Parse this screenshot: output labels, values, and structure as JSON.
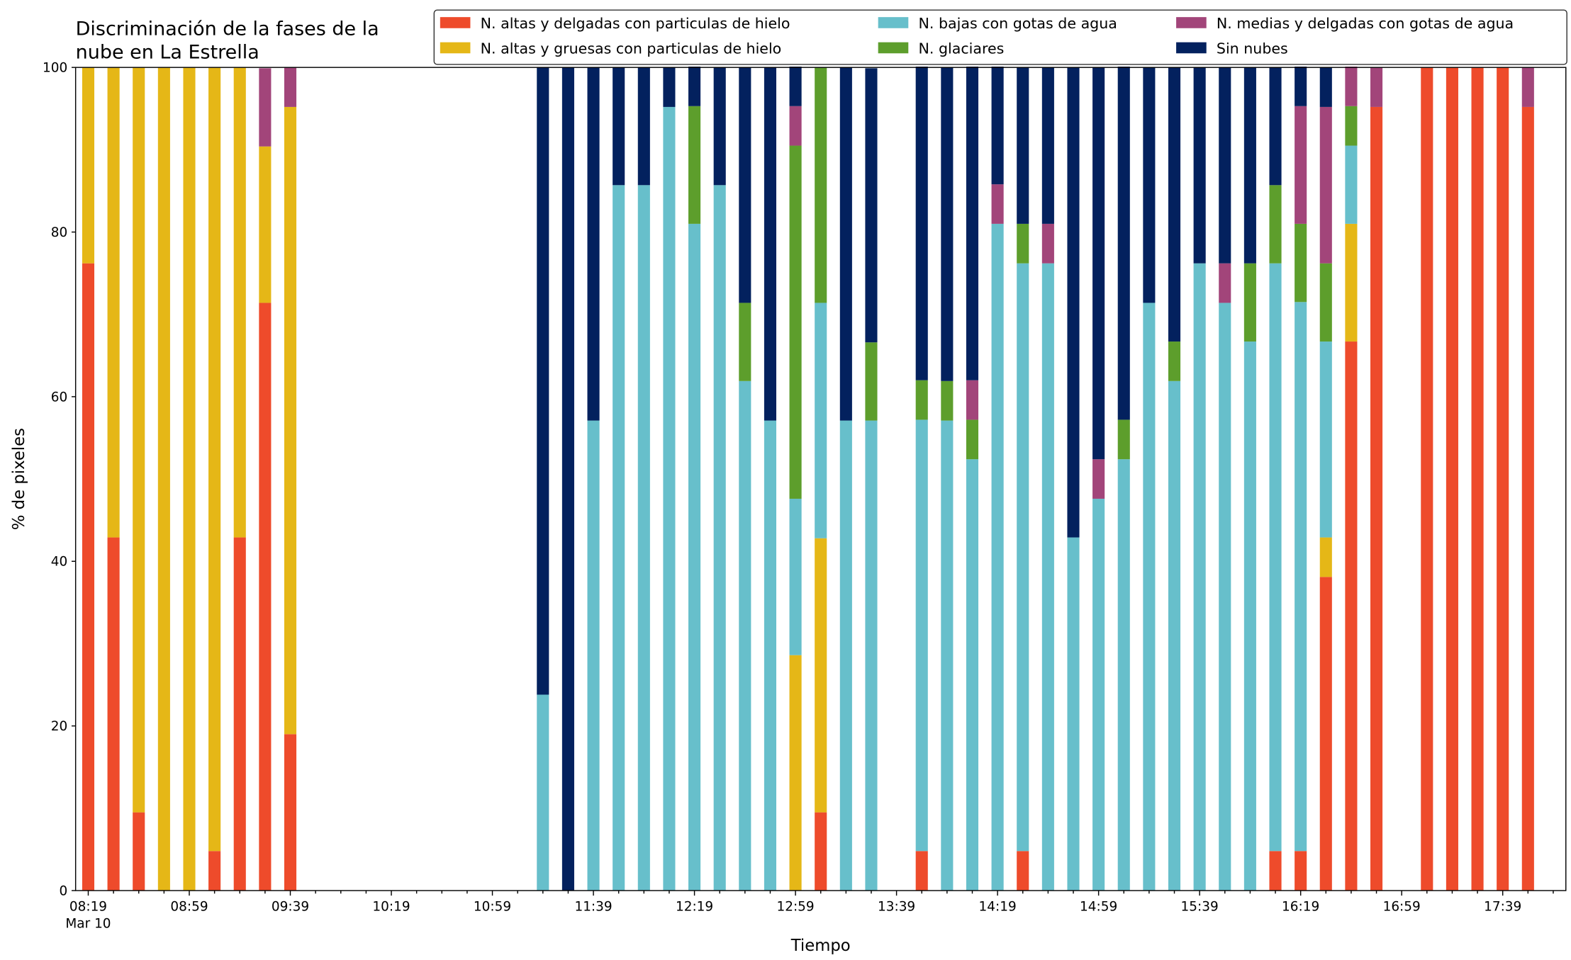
{
  "chart_data": {
    "type": "stacked_bar",
    "title": [
      "Discriminación de la fases de la",
      "nube en La Estrella"
    ],
    "xlabel": "Tiempo",
    "ylabel": "% de pixeles",
    "x": [
      "08:19",
      "08:29",
      "08:39",
      "08:49",
      "08:59",
      "09:09",
      "09:19",
      "09:29",
      "09:39",
      "11:19",
      "11:29",
      "11:39",
      "11:49",
      "11:59",
      "12:09",
      "12:19",
      "12:29",
      "12:39",
      "12:49",
      "12:59",
      "13:09",
      "13:19",
      "13:29",
      "13:49",
      "13:59",
      "14:09",
      "14:19",
      "14:29",
      "14:39",
      "14:49",
      "14:59",
      "15:09",
      "15:19",
      "15:29",
      "15:39",
      "15:49",
      "15:59",
      "16:09",
      "16:19",
      "16:29",
      "16:39",
      "16:49",
      "17:09",
      "17:19",
      "17:29",
      "17:39",
      "17:49"
    ],
    "series": [
      {
        "name": "N. altas y delgadas con particulas de hielo",
        "color": "#ee4b2b",
        "values": [
          76.2,
          42.9,
          9.5,
          0,
          0,
          4.8,
          42.9,
          71.4,
          19.0,
          0,
          0,
          0,
          0,
          0,
          0,
          0,
          0,
          0,
          0,
          0,
          9.5,
          0,
          0,
          4.8,
          0,
          0,
          0,
          4.8,
          0,
          0,
          0,
          0,
          0,
          0,
          0,
          0,
          0,
          4.8,
          4.8,
          38.1,
          66.7,
          95.2,
          100,
          100,
          100,
          100,
          95.2
        ]
      },
      {
        "name": "N. altas y gruesas con particulas de hielo",
        "color": "#e5b717",
        "values": [
          23.8,
          57.1,
          90.5,
          100,
          100,
          95.2,
          57.1,
          19.0,
          76.2,
          0,
          0,
          0,
          0,
          0,
          0,
          0,
          0,
          0,
          0,
          28.6,
          33.3,
          0,
          0,
          0,
          0,
          0,
          0,
          0,
          0,
          0,
          0,
          0,
          0,
          0,
          0,
          0,
          0,
          0,
          0,
          4.8,
          14.3,
          0,
          0,
          0,
          0,
          0,
          0
        ]
      },
      {
        "name": "N. bajas con gotas de agua",
        "color": "#67bfcb",
        "values": [
          0,
          0,
          0,
          0,
          0,
          0,
          0,
          0,
          0,
          23.8,
          0,
          57.1,
          85.7,
          85.7,
          95.2,
          81.0,
          85.7,
          61.9,
          57.1,
          19.0,
          28.6,
          57.1,
          57.1,
          52.4,
          57.1,
          52.4,
          81.0,
          71.4,
          76.2,
          42.9,
          47.6,
          52.4,
          71.4,
          61.9,
          76.2,
          71.4,
          66.7,
          71.4,
          66.7,
          23.8,
          9.5,
          0,
          0,
          0,
          0,
          0,
          0
        ]
      },
      {
        "name": "N. glaciares",
        "color": "#5d9e2c",
        "values": [
          0,
          0,
          0,
          0,
          0,
          0,
          0,
          0,
          0,
          0,
          0,
          0,
          0,
          0,
          0,
          14.3,
          0,
          9.5,
          0,
          42.9,
          28.6,
          0,
          9.5,
          4.8,
          4.8,
          4.8,
          0,
          4.8,
          0,
          0,
          0,
          4.8,
          0,
          4.8,
          0,
          0,
          9.5,
          9.5,
          9.5,
          9.5,
          4.8,
          0,
          0,
          0,
          0,
          0,
          0
        ]
      },
      {
        "name": "N. medias y delgadas con gotas de agua",
        "color": "#a2457a",
        "values": [
          0,
          0,
          0,
          0,
          0,
          0,
          0,
          9.5,
          4.8,
          0,
          0,
          0,
          0,
          0,
          0,
          0,
          0,
          0,
          0,
          4.8,
          0,
          0,
          0,
          0,
          0,
          4.8,
          4.8,
          0,
          4.8,
          0,
          4.8,
          0,
          0,
          0,
          0,
          4.8,
          0,
          0,
          14.3,
          19.0,
          4.8,
          4.8,
          0,
          0,
          0,
          0,
          4.8
        ]
      },
      {
        "name": "Sin nubes",
        "color": "#03215e",
        "values": [
          0,
          0,
          0,
          0,
          0,
          0,
          0,
          0,
          0,
          76.2,
          100,
          42.9,
          14.3,
          14.3,
          4.8,
          4.8,
          14.3,
          28.6,
          42.9,
          4.8,
          0,
          42.9,
          33.3,
          38.1,
          38.1,
          38.1,
          14.3,
          19.0,
          19.0,
          57.1,
          47.6,
          42.9,
          28.6,
          33.3,
          23.8,
          23.8,
          23.8,
          14.3,
          4.8,
          4.8,
          0,
          0,
          0,
          0,
          0,
          0,
          0
        ]
      }
    ],
    "xlim": [
      "08:14",
      "18:04"
    ],
    "xticks": [
      "08:19",
      "08:59",
      "09:39",
      "10:19",
      "10:59",
      "11:39",
      "12:19",
      "12:59",
      "13:39",
      "14:19",
      "14:59",
      "15:39",
      "16:19",
      "16:59",
      "17:39"
    ],
    "xtick_sublabel": "Mar 10",
    "ylim": [
      0,
      100
    ],
    "yticks": [
      0,
      20,
      40,
      60,
      80,
      100
    ],
    "legend": "upper right",
    "legend_columns": 3
  }
}
